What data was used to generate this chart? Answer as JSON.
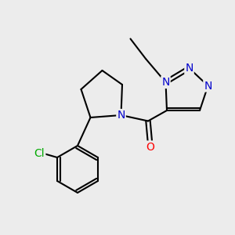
{
  "background_color": "#ececec",
  "bond_color": "#000000",
  "N_color": "#0000cc",
  "O_color": "#ff0000",
  "Cl_color": "#00aa00",
  "bond_width": 1.5,
  "font_size": 10,
  "figsize": [
    3.0,
    3.0
  ],
  "dpi": 100,
  "xlim": [
    0,
    10
  ],
  "ylim": [
    0,
    10
  ]
}
